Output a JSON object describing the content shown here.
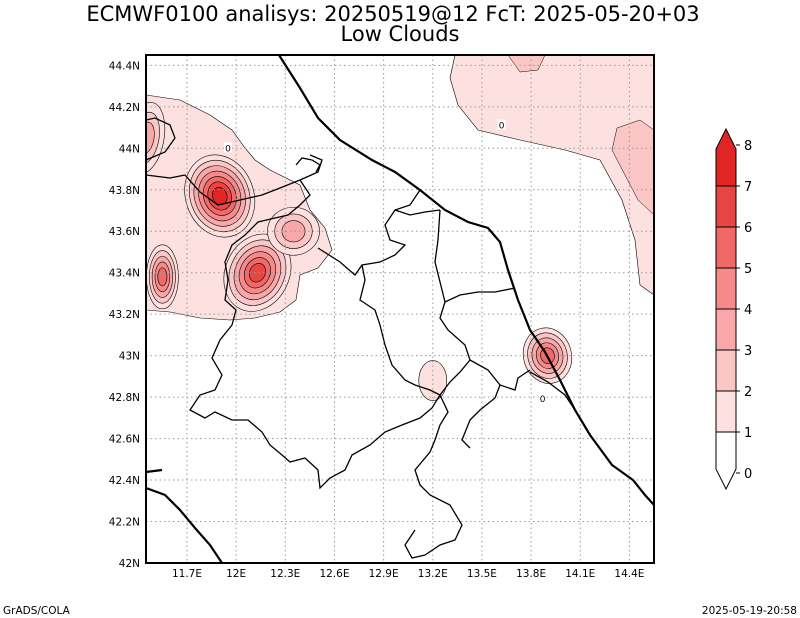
{
  "title": {
    "line1": "ECMWF0100 analisys: 20250519@12 FcT: 2025-05-20+03",
    "line2": "Low Clouds"
  },
  "footer": {
    "left": "GrADS/COLA",
    "right": "2025-05-19-20:58"
  },
  "map": {
    "lon_range": [
      11.45,
      14.55
    ],
    "lat_range": [
      42.0,
      44.45
    ],
    "x_ticks": [
      {
        "lon": 11.7,
        "label": "11.7E"
      },
      {
        "lon": 12.0,
        "label": "12E"
      },
      {
        "lon": 12.3,
        "label": "12.3E"
      },
      {
        "lon": 12.6,
        "label": "12.6E"
      },
      {
        "lon": 12.9,
        "label": "12.9E"
      },
      {
        "lon": 13.2,
        "label": "13.2E"
      },
      {
        "lon": 13.5,
        "label": "13.5E"
      },
      {
        "lon": 13.8,
        "label": "13.8E"
      },
      {
        "lon": 14.1,
        "label": "14.1E"
      },
      {
        "lon": 14.4,
        "label": "14.4E"
      }
    ],
    "y_ticks": [
      {
        "lat": 42.0,
        "label": "42N"
      },
      {
        "lat": 42.2,
        "label": "42.2N"
      },
      {
        "lat": 42.4,
        "label": "42.4N"
      },
      {
        "lat": 42.6,
        "label": "42.6N"
      },
      {
        "lat": 42.8,
        "label": "42.8N"
      },
      {
        "lat": 43.0,
        "label": "43N"
      },
      {
        "lat": 43.2,
        "label": "43.2N"
      },
      {
        "lat": 43.4,
        "label": "43.4N"
      },
      {
        "lat": 43.6,
        "label": "43.6N"
      },
      {
        "lat": 43.8,
        "label": "43.8N"
      },
      {
        "lat": 44.0,
        "label": "44N"
      },
      {
        "lat": 44.2,
        "label": "44.2N"
      },
      {
        "lat": 44.4,
        "label": "44.4N"
      }
    ],
    "grid": "dotted",
    "contour_labels": [
      {
        "text": "0",
        "lon": 11.95,
        "lat": 44.0
      },
      {
        "text": "0",
        "lon": 13.62,
        "lat": 44.11
      },
      {
        "text": "0",
        "lon": 13.87,
        "lat": 42.79
      }
    ],
    "cloud_cells": [
      {
        "lon": 11.9,
        "lat": 43.77,
        "peak": 7
      },
      {
        "lon": 12.13,
        "lat": 43.4,
        "peak": 6
      },
      {
        "lon": 11.55,
        "lat": 43.38,
        "peak": 5
      },
      {
        "lon": 12.35,
        "lat": 43.6,
        "peak": 3
      },
      {
        "lon": 13.9,
        "lat": 43.0,
        "peak": 5
      },
      {
        "lon": 13.2,
        "lat": 42.88,
        "peak": 1
      },
      {
        "lon": 11.45,
        "lat": 44.05,
        "peak": 3
      }
    ]
  },
  "colorbar": {
    "levels": [
      "0",
      "1",
      "2",
      "3",
      "4",
      "5",
      "6",
      "7",
      "8"
    ],
    "colors": [
      "#ffffff",
      "#fde1e1",
      "#fac6c6",
      "#f8a8a8",
      "#f58a8a",
      "#f06868",
      "#ea4545",
      "#e12424"
    ]
  }
}
